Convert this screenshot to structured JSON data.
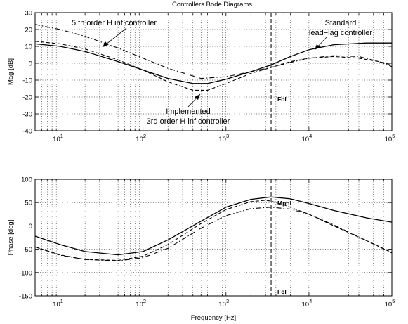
{
  "title": "Controllers Bode Diagrams",
  "chart_data": [
    {
      "type": "line",
      "name": "magnitude",
      "ylabel": "Mag [dB]",
      "xlabel": "",
      "xscale": "log",
      "xlim": [
        5,
        100000
      ],
      "ylim": [
        -40,
        30
      ],
      "yticks": [
        -40,
        -30,
        -20,
        -10,
        0,
        10,
        20,
        30
      ],
      "xticks": [
        {
          "v": 10,
          "base": "10",
          "exp": "1"
        },
        {
          "v": 100,
          "base": "10",
          "exp": "2"
        },
        {
          "v": 1000,
          "base": "10",
          "exp": "3"
        },
        {
          "v": 10000,
          "base": "10",
          "exp": "4"
        },
        {
          "v": 100000,
          "base": "10",
          "exp": "5"
        }
      ],
      "grid": true,
      "vline": {
        "x": 3500,
        "label": "Fol"
      },
      "series": [
        {
          "id": "standard",
          "style": "solid",
          "x": [
            5,
            10,
            20,
            50,
            100,
            200,
            400,
            600,
            1000,
            2000,
            3500,
            6000,
            10000,
            20000,
            50000,
            100000
          ],
          "y": [
            11.5,
            10,
            7,
            1,
            -4,
            -9,
            -12,
            -12,
            -9.5,
            -5,
            -1,
            4,
            8,
            11,
            12,
            12
          ]
        },
        {
          "id": "implemented",
          "style": "dashed",
          "x": [
            5,
            10,
            20,
            50,
            100,
            200,
            400,
            600,
            1000,
            2000,
            3500,
            6000,
            10000,
            20000,
            40000,
            70000,
            100000
          ],
          "y": [
            13,
            11.5,
            8.5,
            2,
            -4,
            -11,
            -16,
            -16,
            -12,
            -6,
            -2.5,
            1,
            3,
            4,
            3,
            1,
            -1
          ]
        },
        {
          "id": "fifth-order",
          "style": "dashdot",
          "x": [
            5,
            10,
            20,
            50,
            100,
            200,
            500,
            1000,
            2000,
            3500,
            6000,
            10000,
            20000,
            40000,
            70000,
            100000
          ],
          "y": [
            23,
            20,
            16,
            9,
            3,
            -3,
            -9,
            -8,
            -5,
            -2.5,
            0.5,
            3,
            4.5,
            4,
            1,
            -2
          ]
        }
      ],
      "annotations": [
        {
          "id": "fifth-order-label",
          "text": "5 th order H inf controller"
        },
        {
          "id": "standard-label-1",
          "text": "Standard"
        },
        {
          "id": "standard-label-2",
          "text": "lead−lag controller"
        },
        {
          "id": "implemented-label-1",
          "text": "Implemented"
        },
        {
          "id": "implemented-label-2",
          "text": "3rd order H inf controller"
        }
      ]
    },
    {
      "type": "line",
      "name": "phase",
      "ylabel": "Phase [deg]",
      "xlabel": "Frequency [Hz]",
      "xscale": "log",
      "xlim": [
        5,
        100000
      ],
      "ylim": [
        -150,
        100
      ],
      "yticks": [
        -150,
        -100,
        -50,
        0,
        50,
        100
      ],
      "xticks": [
        {
          "v": 10,
          "base": "10",
          "exp": "1"
        },
        {
          "v": 100,
          "base": "10",
          "exp": "2"
        },
        {
          "v": 1000,
          "base": "10",
          "exp": "3"
        },
        {
          "v": 10000,
          "base": "10",
          "exp": "4"
        },
        {
          "v": 100000,
          "base": "10",
          "exp": "5"
        }
      ],
      "grid": true,
      "vline": {
        "x": 3500,
        "label": "Fol"
      },
      "series": [
        {
          "id": "standard",
          "style": "solid",
          "x": [
            5,
            10,
            20,
            50,
            100,
            200,
            500,
            1000,
            2000,
            3500,
            6000,
            10000,
            20000,
            50000,
            100000
          ],
          "y": [
            -22,
            -40,
            -55,
            -62,
            -55,
            -30,
            10,
            40,
            57,
            62,
            58,
            48,
            33,
            17,
            8
          ]
        },
        {
          "id": "implemented",
          "style": "dashed",
          "x": [
            5,
            10,
            20,
            50,
            100,
            200,
            500,
            1000,
            2000,
            3000,
            3500,
            5000,
            10000,
            20000,
            50000,
            100000
          ],
          "y": [
            -45,
            -62,
            -72,
            -74,
            -65,
            -40,
            5,
            35,
            52,
            55,
            53,
            45,
            25,
            0,
            -32,
            -57
          ]
        },
        {
          "id": "fifth-order",
          "style": "dashdot",
          "x": [
            5,
            10,
            20,
            50,
            100,
            200,
            500,
            1000,
            2000,
            3500,
            6000,
            10000,
            20000,
            50000,
            100000
          ],
          "y": [
            -45,
            -63,
            -72,
            -75,
            -68,
            -48,
            -5,
            22,
            37,
            40,
            36,
            25,
            2,
            -32,
            -58
          ]
        }
      ],
      "annotations": [
        {
          "id": "mphi-label",
          "text": "Mphi"
        }
      ]
    }
  ]
}
